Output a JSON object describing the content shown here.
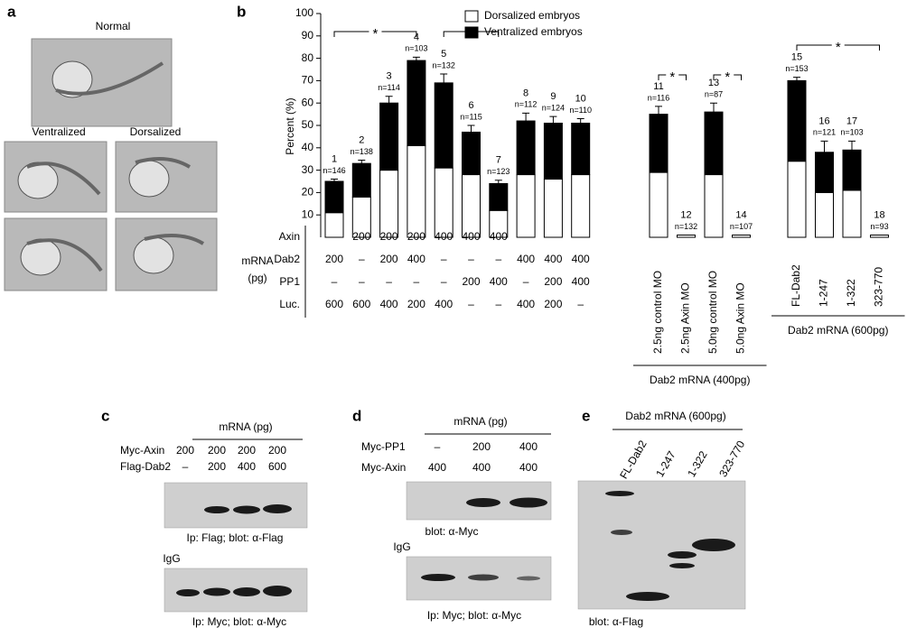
{
  "panel_labels": [
    "a",
    "b",
    "c",
    "d",
    "e"
  ],
  "panel_a": {
    "normal": "Normal",
    "ventralized": "Ventralized",
    "dorsalized": "Dorsalized"
  },
  "chart_data": {
    "type": "bar",
    "stacked": true,
    "y_label": "Percent (%)",
    "categories": [
      "1",
      "2",
      "3",
      "4",
      "5",
      "6",
      "7",
      "8",
      "9",
      "10",
      "11",
      "12",
      "13",
      "14",
      "15",
      "16",
      "17",
      "18"
    ],
    "n_labels": [
      "n=146",
      "n=138",
      "n=114",
      "n=103",
      "n=132",
      "n=115",
      "n=123",
      "n=112",
      "n=124",
      "n=110",
      "n=116",
      "n=132",
      "n=87",
      "n=107",
      "n=153",
      "n=121",
      "n=103",
      "n=93"
    ],
    "series": [
      {
        "name": "Dorsalized embryos",
        "color": "#ffffff",
        "values": [
          11,
          18,
          30,
          41,
          31,
          28,
          12,
          28,
          26,
          28,
          29,
          1,
          28,
          1,
          34,
          20,
          21,
          1
        ]
      },
      {
        "name": "Ventralized embryos",
        "color": "#000000",
        "values": [
          14,
          15,
          30,
          38,
          38,
          19,
          12,
          24,
          25,
          23,
          26,
          0,
          28,
          0,
          36,
          18,
          18,
          0
        ]
      }
    ],
    "errors": [
      1,
      1.5,
      3,
      1.5,
      4,
      3,
      1.5,
      3.5,
      3,
      2,
      3.5,
      null,
      4,
      null,
      1.5,
      5,
      4,
      null
    ],
    "ylim": [
      0,
      100
    ],
    "yticks": [
      10,
      20,
      30,
      40,
      50,
      60,
      70,
      80,
      90,
      100
    ],
    "significance": [
      {
        "between": [
          "1",
          "4"
        ],
        "label": "*"
      },
      {
        "between": [
          "5",
          "7"
        ],
        "label": "*"
      },
      {
        "between": [
          "11",
          "12"
        ],
        "label": "*"
      },
      {
        "between": [
          "13",
          "14"
        ],
        "label": "*"
      },
      {
        "between": [
          "15",
          "18"
        ],
        "label": "*"
      }
    ],
    "treatment_table": {
      "row_label": [
        "mRNA",
        "(pg)"
      ],
      "rows": [
        {
          "name": "Axin",
          "cells": [
            "–",
            "200",
            "200",
            "200",
            "400",
            "400",
            "400",
            "–",
            "–",
            "–"
          ]
        },
        {
          "name": "Dab2",
          "cells": [
            "200",
            "–",
            "200",
            "400",
            "–",
            "–",
            "–",
            "400",
            "400",
            "400"
          ]
        },
        {
          "name": "PP1",
          "cells": [
            "–",
            "–",
            "–",
            "–",
            "–",
            "200",
            "400",
            "–",
            "200",
            "400"
          ]
        },
        {
          "name": "Luc.",
          "cells": [
            "600",
            "600",
            "400",
            "200",
            "400",
            "–",
            "–",
            "400",
            "200",
            "–"
          ]
        }
      ]
    },
    "bracket_groups": [
      {
        "labels": [
          "2.5ng control MO",
          "2.5ng Axin MO",
          "5.0ng control MO",
          "5.0ng Axin MO"
        ],
        "title": "Dab2 mRNA (400pg)"
      },
      {
        "labels": [
          "FL-Dab2",
          "1-247",
          "1-322",
          "323-770"
        ],
        "title": "Dab2 mRNA (600pg)"
      }
    ]
  },
  "panel_c": {
    "title": "mRNA (pg)",
    "rows": [
      {
        "name": "Myc-Axin",
        "cells": [
          "200",
          "200",
          "200",
          "200"
        ]
      },
      {
        "name": "Flag-Dab2",
        "cells": [
          "–",
          "200",
          "400",
          "600"
        ]
      }
    ],
    "caption_1": "Ip: Flag; blot: α-Flag",
    "igg": "IgG",
    "caption_2": "Ip: Myc; blot: α-Myc"
  },
  "panel_d": {
    "title": "mRNA (pg)",
    "rows": [
      {
        "name": "Myc-PP1",
        "cells": [
          "–",
          "200",
          "400"
        ]
      },
      {
        "name": "Myc-Axin",
        "cells": [
          "400",
          "400",
          "400"
        ]
      }
    ],
    "caption_1": "blot: α-Myc",
    "igg": "IgG",
    "caption_2": "Ip: Myc; blot: α-Myc"
  },
  "panel_e": {
    "title": "Dab2 mRNA (600pg)",
    "lanes": [
      "FL-Dab2",
      "1-247",
      "1-322",
      "323-770"
    ],
    "caption": "blot: α-Flag"
  }
}
